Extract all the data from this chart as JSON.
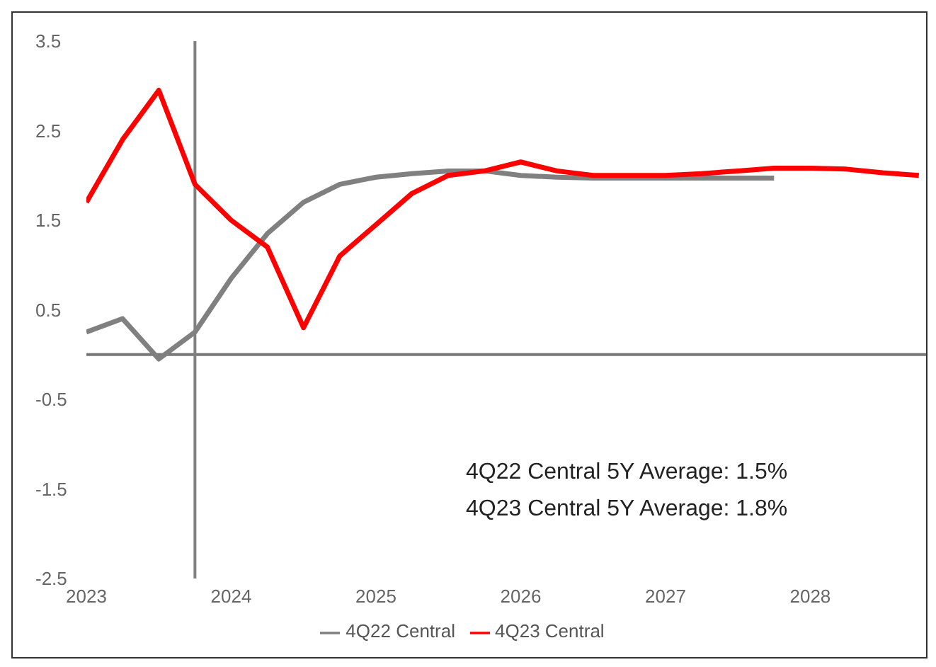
{
  "chart_data": {
    "type": "line",
    "x": [
      2023,
      2023.25,
      2023.5,
      2023.75,
      2024,
      2024.25,
      2024.5,
      2024.75,
      2025,
      2025.25,
      2025.5,
      2025.75,
      2026,
      2026.25,
      2026.5,
      2026.75,
      2027,
      2027.25,
      2027.5,
      2027.75,
      2028,
      2028.25,
      2028.5,
      2028.75
    ],
    "series": [
      {
        "name": "4Q22 Central",
        "color": "#808080",
        "values": [
          0.25,
          0.4,
          -0.05,
          0.25,
          0.85,
          1.35,
          1.7,
          1.9,
          1.98,
          2.02,
          2.05,
          2.05,
          2.0,
          1.98,
          1.97,
          1.97,
          1.97,
          1.97,
          1.97,
          1.97,
          null,
          null,
          null,
          null
        ]
      },
      {
        "name": "4Q23 Central",
        "color": "#ff0000",
        "values": [
          1.7,
          2.4,
          2.95,
          1.9,
          1.5,
          1.2,
          0.3,
          1.1,
          1.45,
          1.8,
          2.0,
          2.05,
          2.15,
          2.05,
          2.0,
          2.0,
          2.0,
          2.02,
          2.05,
          2.08,
          2.08,
          2.07,
          2.03,
          2.0
        ]
      }
    ],
    "xlim": [
      2023,
      2028.8
    ],
    "xticks": [
      2023,
      2024,
      2025,
      2026,
      2027,
      2028
    ],
    "ylim": [
      -2.5,
      3.5
    ],
    "yticks": [
      3.5,
      2.5,
      1.5,
      0.5,
      -0.5,
      -1.5,
      -2.5
    ],
    "ref_lines": [
      {
        "axis": "x",
        "value": 2023.75,
        "color": "#808080"
      }
    ],
    "annotations": [
      "4Q22 Central 5Y Average: 1.5%",
      "4Q23 Central 5Y Average: 1.8%"
    ],
    "grid": false,
    "legend": "bottom",
    "marker": "none",
    "line_style": "solid"
  }
}
